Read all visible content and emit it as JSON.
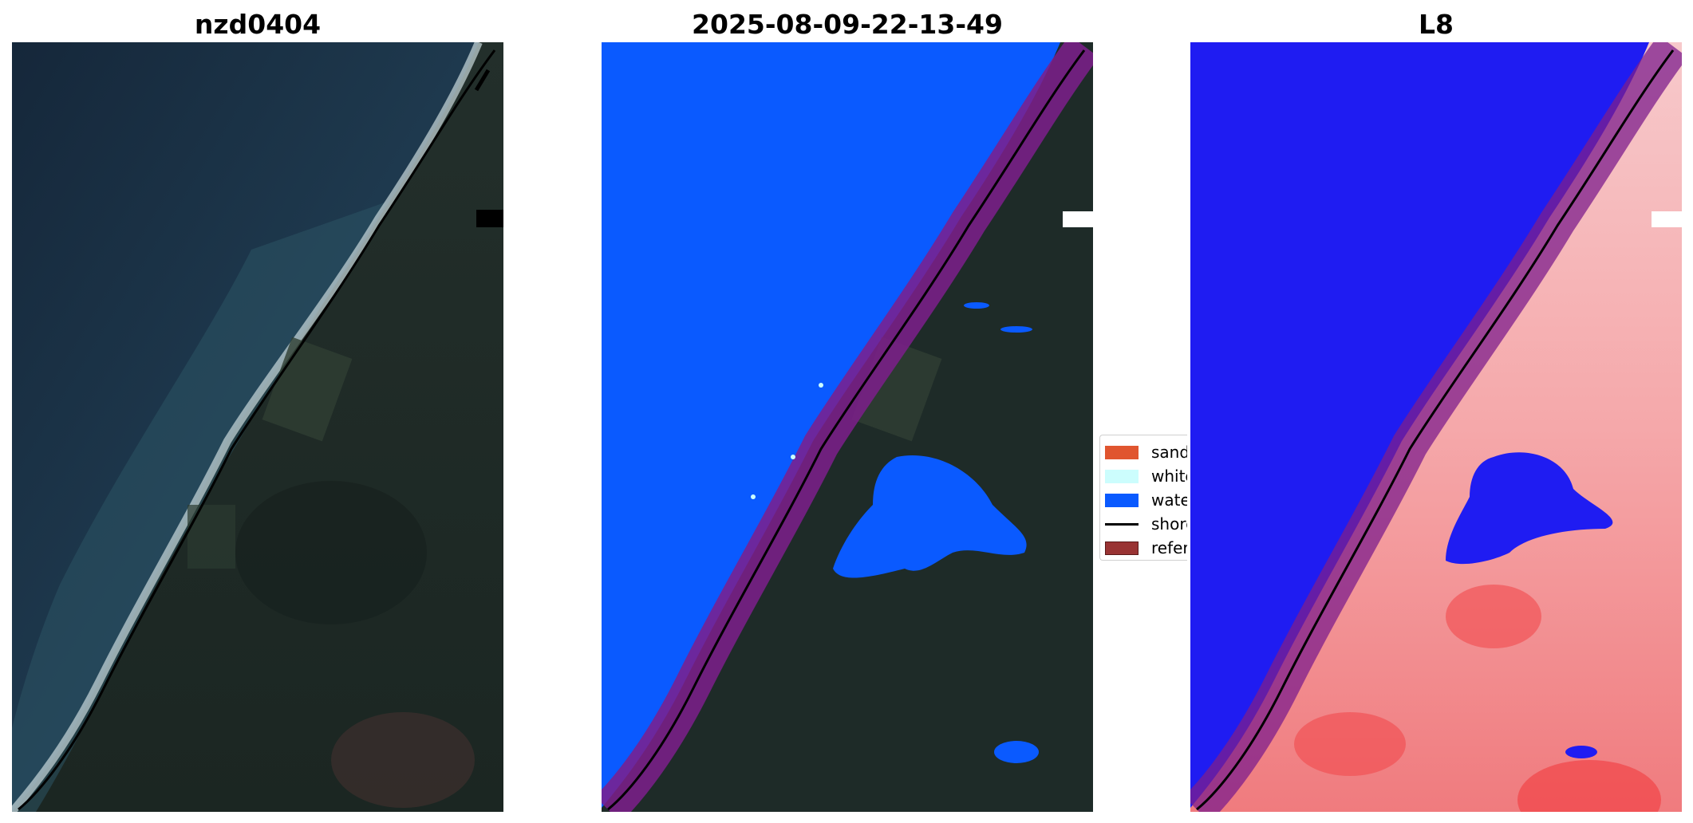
{
  "panels": [
    {
      "title": "nzd0404"
    },
    {
      "title": "2025-08-09-22-13-49"
    },
    {
      "title": "L8"
    }
  ],
  "legend": {
    "items": [
      {
        "label": "sand",
        "color": "#e0552f",
        "type": "patch"
      },
      {
        "label": "white-water",
        "color": "#ccfdfd",
        "type": "patch"
      },
      {
        "label": "water",
        "color": "#0a5aff",
        "type": "patch"
      },
      {
        "label": "shoreline",
        "color": "#000000",
        "type": "line"
      },
      {
        "label": "reference shoreline buffer",
        "color": "#993333",
        "type": "patch"
      }
    ]
  },
  "colors": {
    "rgb_sea": "#1c3347",
    "rgb_land": "#1e2c26",
    "classified_water": "#0a5aff",
    "index_water": "#1f1cf2",
    "index_land": "#f2a2a4",
    "buffer": "#7e1e8c",
    "shoreline": "#000000"
  }
}
